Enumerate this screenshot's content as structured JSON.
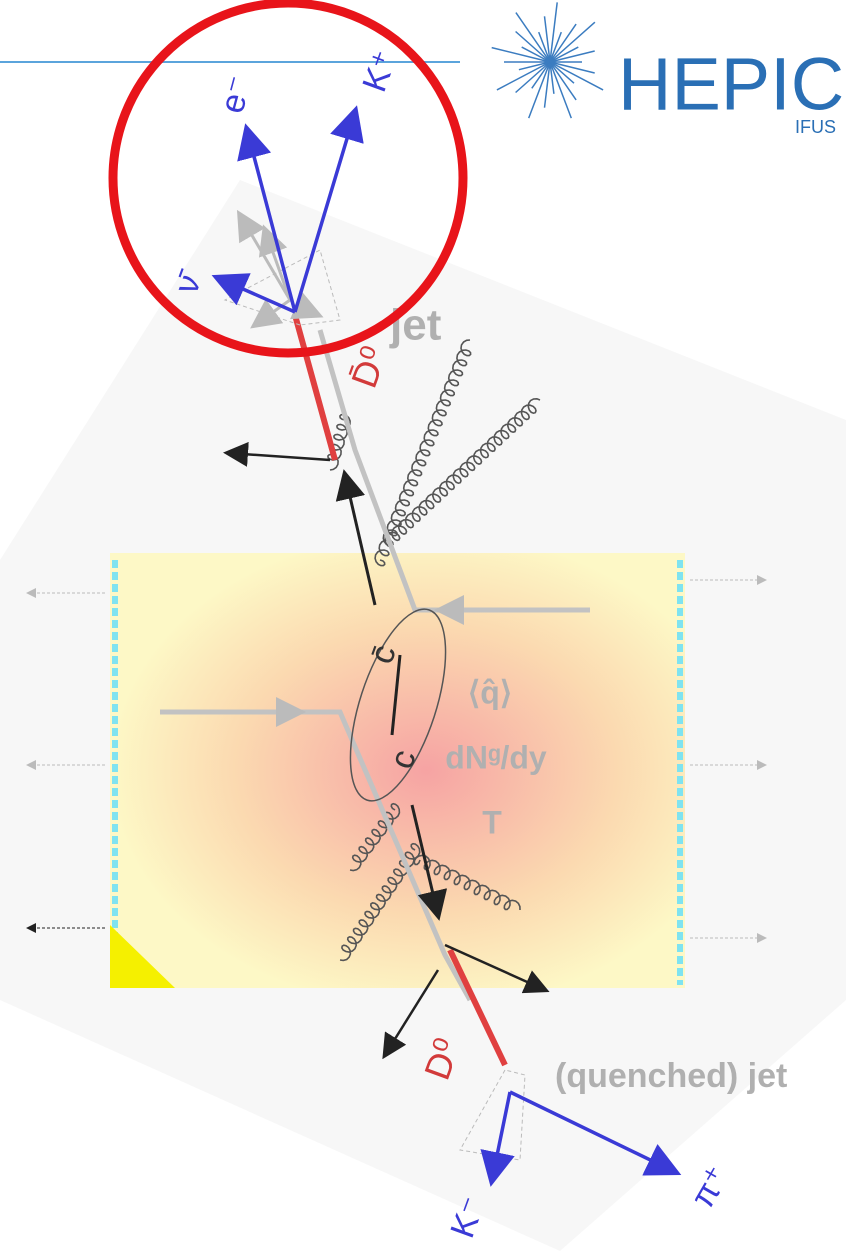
{
  "header": {
    "logo_text": "HEPIC",
    "logo_subtext": "IFUS"
  },
  "diagram": {
    "labels": {
      "electron": "e⁻",
      "kaon_plus": "K⁺",
      "antineutrino": "ν̄",
      "dbar0": "D̄⁰",
      "jet": "jet",
      "cbar": "c̄",
      "c": "c",
      "qhat": "⟨q̂⟩",
      "gluon_density": "dNᵍ/dy",
      "temperature": "T",
      "d0": "D⁰",
      "quenched_jet": "(quenched) jet",
      "kaon_minus": "K⁻",
      "pion_plus": "π⁺"
    }
  }
}
